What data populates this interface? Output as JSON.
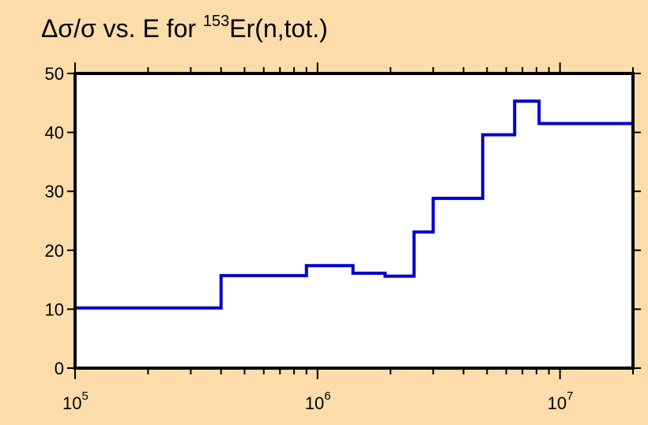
{
  "chart_data": {
    "type": "step-line",
    "title": {
      "delta": "Δσ/σ",
      "middle": " vs. E for ",
      "isotope_mass": "153",
      "rest": "Er(n,tot.)"
    },
    "x_scale": "log",
    "xlim": [
      100000,
      20000000
    ],
    "ylim": [
      0,
      50
    ],
    "xticks": [
      {
        "base": "10",
        "exp": "5",
        "value": 100000
      },
      {
        "base": "10",
        "exp": "6",
        "value": 1000000
      },
      {
        "base": "10",
        "exp": "7",
        "value": 10000000
      }
    ],
    "yticks": [
      "0",
      "10",
      "20",
      "30",
      "40",
      "50"
    ],
    "ytick_values": [
      0,
      10,
      20,
      30,
      40,
      50
    ],
    "series": [
      {
        "color": "#0000cc",
        "steps": [
          {
            "x0": 100000,
            "x1": 400000,
            "y": 10.2
          },
          {
            "x0": 400000,
            "x1": 900000,
            "y": 15.7
          },
          {
            "x0": 900000,
            "x1": 1400000,
            "y": 17.4
          },
          {
            "x0": 1400000,
            "x1": 1900000,
            "y": 16.1
          },
          {
            "x0": 1900000,
            "x1": 2500000,
            "y": 15.6
          },
          {
            "x0": 2500000,
            "x1": 3000000,
            "y": 23.1
          },
          {
            "x0": 3000000,
            "x1": 4800000,
            "y": 28.8
          },
          {
            "x0": 4800000,
            "x1": 6500000,
            "y": 39.6
          },
          {
            "x0": 6500000,
            "x1": 8200000,
            "y": 45.3
          },
          {
            "x0": 8200000,
            "x1": 20000000,
            "y": 41.5
          }
        ]
      }
    ],
    "grid": false
  },
  "colors": {
    "background": "#fcdcab",
    "plot_area": "#ffffff",
    "line": "#0000cc"
  }
}
